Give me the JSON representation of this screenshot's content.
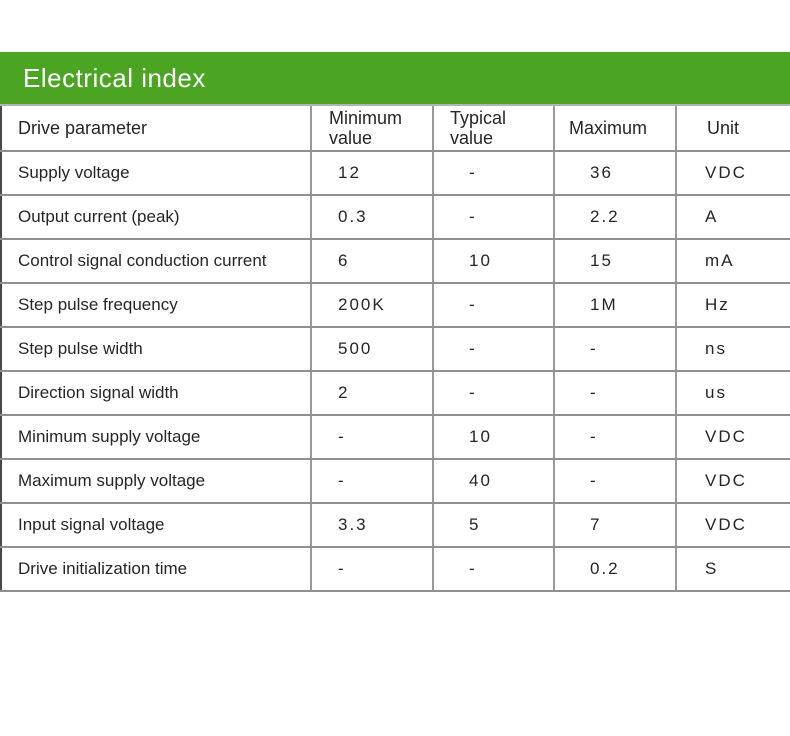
{
  "banner": {
    "title": "Electrical index"
  },
  "theme": {
    "accent_green": "#4ba522",
    "banner_text_color": "#ffffff",
    "grid_line_color": "#909090",
    "left_border_color": "#4a4a4a",
    "text_color": "#262626"
  },
  "table": {
    "headers": [
      "Drive parameter",
      "Minimum value",
      "Typical value",
      "Maximum",
      "Unit"
    ],
    "rows": [
      {
        "parameter": "Supply voltage",
        "min": "12",
        "typ": "-",
        "max": "36",
        "unit": "VDC"
      },
      {
        "parameter": "Output current (peak)",
        "min": "0.3",
        "typ": "-",
        "max": "2.2",
        "unit": "A"
      },
      {
        "parameter": "Control signal conduction current",
        "min": "6",
        "typ": "10",
        "max": "15",
        "unit": "mA"
      },
      {
        "parameter": "Step pulse frequency",
        "min": "200K",
        "typ": "-",
        "max": "1M",
        "unit": "Hz"
      },
      {
        "parameter": "Step pulse width",
        "min": "500",
        "typ": "-",
        "max": "-",
        "unit": "ns"
      },
      {
        "parameter": "Direction signal width",
        "min": "2",
        "typ": "-",
        "max": "-",
        "unit": "us"
      },
      {
        "parameter": "Minimum supply voltage",
        "min": "-",
        "typ": "10",
        "max": "-",
        "unit": "VDC"
      },
      {
        "parameter": "Maximum supply voltage",
        "min": "-",
        "typ": "40",
        "max": "-",
        "unit": "VDC"
      },
      {
        "parameter": "Input signal voltage",
        "min": "3.3",
        "typ": "5",
        "max": "7",
        "unit": "VDC"
      },
      {
        "parameter": "Drive initialization time",
        "min": "-",
        "typ": "-",
        "max": "0.2",
        "unit": "S"
      }
    ]
  }
}
